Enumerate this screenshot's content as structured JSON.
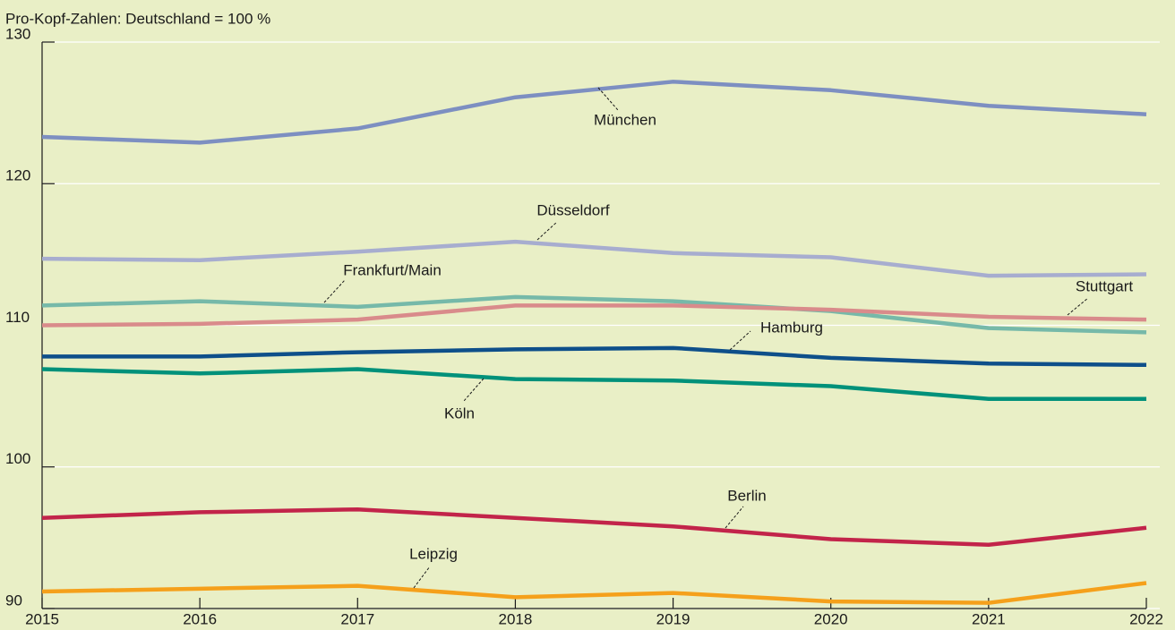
{
  "chart_data": {
    "type": "line",
    "title": "Pro-Kopf-Zahlen: Deutschland = 100 %",
    "categories": [
      "2015",
      "2016",
      "2017",
      "2018",
      "2019",
      "2020",
      "2021",
      "2022"
    ],
    "ylim": [
      90,
      130
    ],
    "yticks": [
      90,
      100,
      110,
      120,
      130
    ],
    "grid": true,
    "series": [
      {
        "name": "München",
        "color": "#7d8fc1",
        "values": [
          123.3,
          122.9,
          123.9,
          126.1,
          127.2,
          126.6,
          125.5,
          124.9
        ]
      },
      {
        "name": "Düsseldorf",
        "color": "#a7adcf",
        "values": [
          114.7,
          114.6,
          115.2,
          115.9,
          115.1,
          114.8,
          113.5,
          113.6
        ]
      },
      {
        "name": "Frankfurt/Main",
        "color": "#76b9a9",
        "values": [
          111.4,
          111.7,
          111.3,
          112.0,
          111.7,
          111.0,
          109.8,
          109.5
        ]
      },
      {
        "name": "Stuttgart",
        "color": "#d98b8b",
        "values": [
          110.0,
          110.1,
          110.4,
          111.4,
          111.4,
          111.1,
          110.6,
          110.4
        ]
      },
      {
        "name": "Hamburg",
        "color": "#0e4f8a",
        "values": [
          107.8,
          107.8,
          108.1,
          108.3,
          108.4,
          107.7,
          107.3,
          107.2
        ]
      },
      {
        "name": "Köln",
        "color": "#00917a",
        "values": [
          106.9,
          106.6,
          106.9,
          106.2,
          106.1,
          105.7,
          104.8,
          104.8
        ]
      },
      {
        "name": "Berlin",
        "color": "#c2244a",
        "values": [
          96.4,
          96.8,
          97.0,
          96.4,
          95.8,
          94.9,
          94.5,
          95.7
        ]
      },
      {
        "name": "Leipzig",
        "color": "#f5a01b",
        "values": [
          91.2,
          91.4,
          91.6,
          90.8,
          91.1,
          90.5,
          90.4,
          91.8
        ]
      }
    ]
  }
}
